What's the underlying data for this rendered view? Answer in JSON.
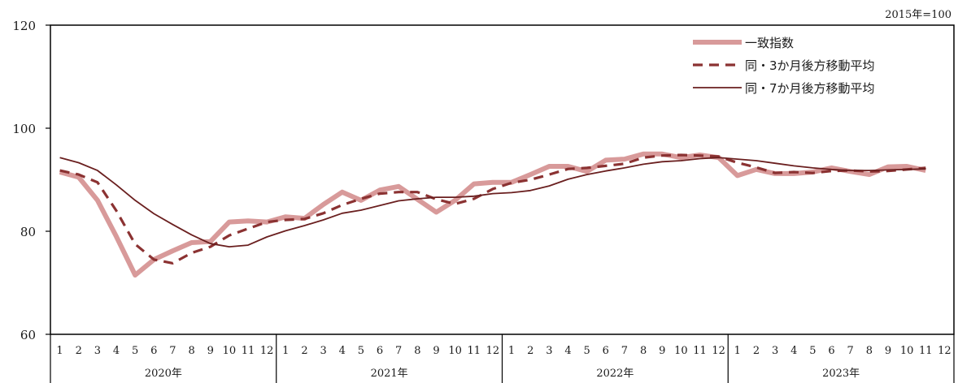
{
  "chart_data": {
    "type": "line",
    "unit_note": "2015年=100",
    "ylim": [
      60,
      120
    ],
    "yticks": [
      "60",
      "80",
      "100",
      "120"
    ],
    "months": [
      "1",
      "2",
      "3",
      "4",
      "5",
      "6",
      "7",
      "8",
      "9",
      "10",
      "11",
      "12"
    ],
    "years": [
      "2020年",
      "2021年",
      "2022年",
      "2023年"
    ],
    "grid": false,
    "legend_position": "top-right",
    "series": [
      {
        "name": "一致指数",
        "style": "thick",
        "color": "#d89a9a",
        "values": [
          91.5,
          90.5,
          86.0,
          79.0,
          71.5,
          74.5,
          76.2,
          77.8,
          78.0,
          81.8,
          82.0,
          81.8,
          82.8,
          82.5,
          85.2,
          87.6,
          86.0,
          88.0,
          88.7,
          86.2,
          83.7,
          86.0,
          89.2,
          89.5,
          89.5,
          91.0,
          92.6,
          92.6,
          91.6,
          93.8,
          94.0,
          95.0,
          95.0,
          94.3,
          94.8,
          94.3,
          90.8,
          92.0,
          91.2,
          91.2,
          91.5,
          92.3,
          91.6,
          91.0,
          92.5,
          92.6,
          91.8
        ]
      },
      {
        "name": "同・3か月後方移動平均",
        "style": "dashed",
        "color": "#8b3232",
        "values": [
          91.8,
          91.0,
          89.5,
          84.0,
          77.5,
          74.5,
          73.8,
          75.8,
          77.0,
          79.2,
          80.5,
          81.8,
          82.2,
          82.4,
          83.5,
          85.1,
          86.3,
          87.3,
          87.6,
          87.6,
          86.2,
          85.3,
          86.3,
          88.2,
          89.4,
          90.0,
          91.0,
          92.1,
          92.3,
          92.7,
          93.1,
          94.3,
          94.7,
          94.8,
          94.7,
          94.5,
          93.3,
          92.4,
          91.3,
          91.5,
          91.3,
          91.7,
          91.8,
          91.6,
          91.7,
          92.0,
          92.3
        ]
      },
      {
        "name": "同・7か月後方移動平均",
        "style": "thin",
        "color": "#6a1f1f",
        "values": [
          94.3,
          93.3,
          91.8,
          89.0,
          86.0,
          83.4,
          81.3,
          79.3,
          77.6,
          77.0,
          77.3,
          78.9,
          80.1,
          81.1,
          82.2,
          83.5,
          84.1,
          85.0,
          85.9,
          86.3,
          86.6,
          86.6,
          86.8,
          87.3,
          87.5,
          87.9,
          88.8,
          90.1,
          91.0,
          91.7,
          92.3,
          93.0,
          93.5,
          93.7,
          94.1,
          94.3,
          94.0,
          93.7,
          93.2,
          92.7,
          92.3,
          92.0,
          91.8,
          91.8,
          91.9,
          92.0,
          92.1
        ]
      }
    ]
  }
}
